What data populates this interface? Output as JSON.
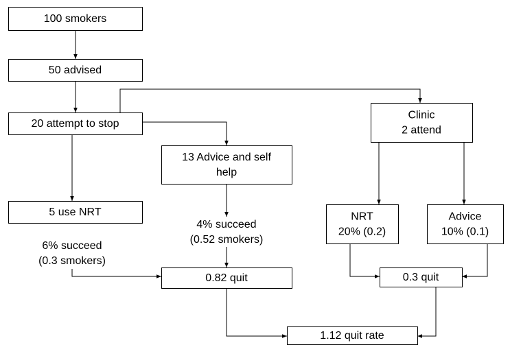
{
  "nodes": [
    {
      "lines": [
        "100 smokers"
      ]
    },
    {
      "lines": [
        "50 advised"
      ]
    },
    {
      "lines": [
        "20 attempt to stop"
      ]
    },
    {
      "lines": [
        "Clinic",
        "2 attend"
      ]
    },
    {
      "lines": [
        "13 Advice and self",
        "help"
      ]
    },
    {
      "lines": [
        "5 use NRT"
      ]
    },
    {
      "lines": [
        "6% succeed",
        "(0.3 smokers)"
      ]
    },
    {
      "lines": [
        "4% succeed",
        "(0.52 smokers)"
      ]
    },
    {
      "lines": [
        "NRT",
        "20% (0.2)"
      ]
    },
    {
      "lines": [
        "Advice",
        "10% (0.1)"
      ]
    },
    {
      "lines": [
        "0.82 quit"
      ]
    },
    {
      "lines": [
        "0.3 quit"
      ]
    },
    {
      "lines": [
        "1.12 quit rate"
      ]
    }
  ]
}
